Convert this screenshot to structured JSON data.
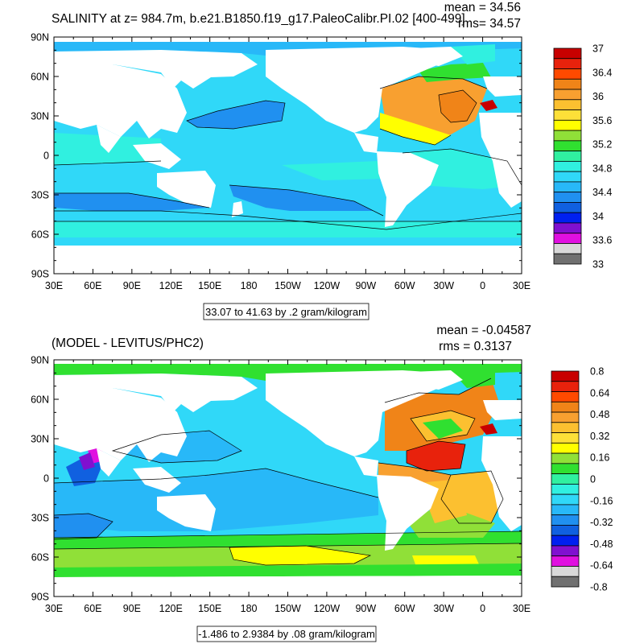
{
  "chart_data": [
    {
      "type": "contour-map",
      "title": "SALINITY at z= 984.7m, b.e21.B1850.f19_g17.PaleoCalibr.PI.02 [400-499]",
      "mean_label": "mean = 34.56",
      "rms_label": "rms= 34.57",
      "x_tick_labels": [
        "30E",
        "60E",
        "90E",
        "120E",
        "150E",
        "180",
        "150W",
        "120W",
        "90W",
        "60W",
        "30W",
        "0",
        "30E"
      ],
      "y_tick_labels": [
        "90N",
        "60N",
        "30N",
        "0",
        "30S",
        "60S",
        "90S"
      ],
      "xlim": [
        30,
        390
      ],
      "ylim": [
        -90,
        90
      ],
      "contour_info": "33.07 to 41.63 by .2 gram/kilogram",
      "colorbar": {
        "labels": [
          "37",
          "36.4",
          "36",
          "35.6",
          "35.2",
          "34.8",
          "34.4",
          "34",
          "33.6",
          "33"
        ],
        "colors": [
          "#c80000",
          "#e8220c",
          "#ff4a00",
          "#f08418",
          "#f8a030",
          "#fcc030",
          "#fde038",
          "#ffff00",
          "#90e038",
          "#30e030",
          "#30f0a0",
          "#30f0e0",
          "#30d8f8",
          "#28b8f8",
          "#2090f0",
          "#1060e0",
          "#0020f0",
          "#8010d0",
          "#e010e0",
          "#d8d8d8",
          "#707070"
        ]
      }
    },
    {
      "type": "contour-map",
      "title": "(MODEL - LEVITUS/PHC2)",
      "mean_label": "mean = -0.04587",
      "rms_label": "rms = 0.3137",
      "x_tick_labels": [
        "30E",
        "60E",
        "90E",
        "120E",
        "150E",
        "180",
        "150W",
        "120W",
        "90W",
        "60W",
        "30W",
        "0",
        "30E"
      ],
      "y_tick_labels": [
        "90N",
        "60N",
        "30N",
        "0",
        "30S",
        "60S",
        "90S"
      ],
      "xlim": [
        30,
        390
      ],
      "ylim": [
        -90,
        90
      ],
      "contour_info": "-1.486 to 2.9384 by .08 gram/kilogram",
      "colorbar": {
        "labels": [
          "0.8",
          "0.64",
          "0.48",
          "0.32",
          "0.16",
          "0",
          "-0.16",
          "-0.32",
          "-0.48",
          "-0.64",
          "-0.8"
        ],
        "colors": [
          "#c80000",
          "#e8220c",
          "#ff4a00",
          "#f08418",
          "#f8a030",
          "#fcc030",
          "#fde038",
          "#ffff00",
          "#90e038",
          "#30e030",
          "#30f0a0",
          "#30f0e0",
          "#30d8f8",
          "#28b8f8",
          "#2090f0",
          "#1060e0",
          "#0020f0",
          "#8010d0",
          "#e010e0",
          "#d8d8d8",
          "#707070"
        ]
      }
    }
  ]
}
